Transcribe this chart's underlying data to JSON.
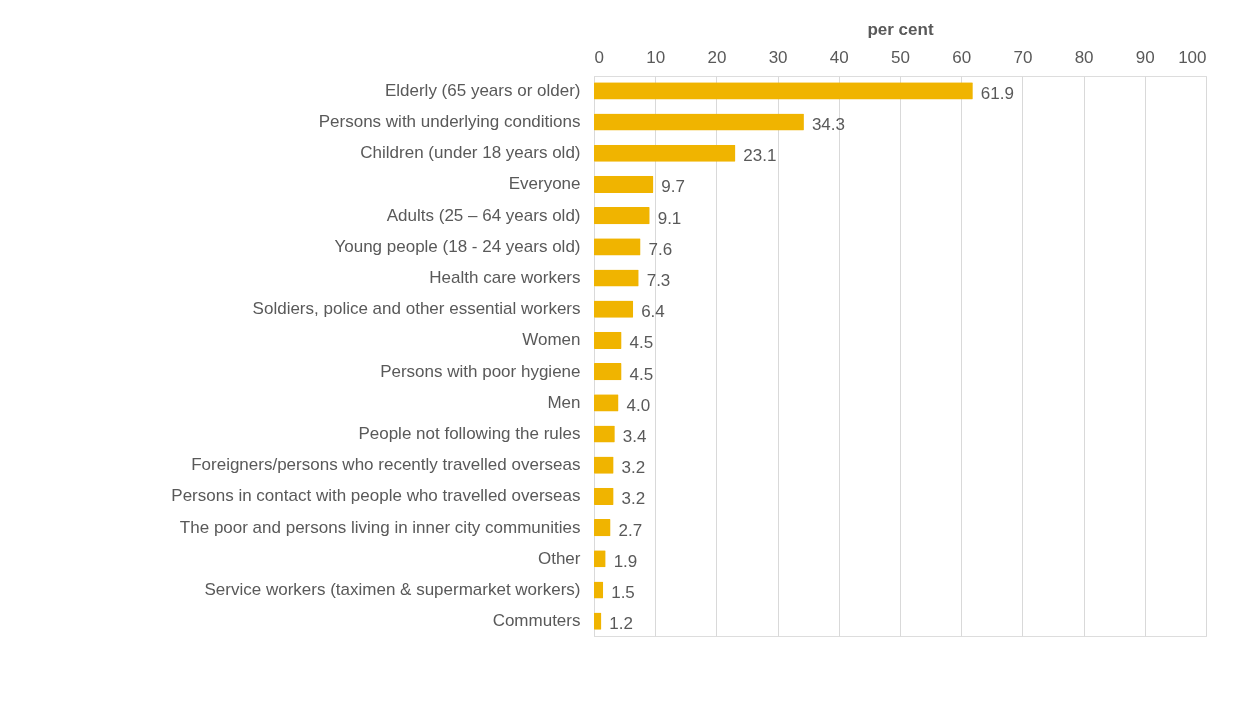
{
  "chart_data": {
    "type": "bar",
    "orientation": "horizontal",
    "xlabel": "per cent",
    "categories": [
      "Elderly (65 years or older)",
      "Persons with underlying conditions",
      "Children (under 18 years old)",
      "Everyone",
      "Adults (25 – 64 years old)",
      "Young people (18 - 24 years old)",
      "Health care workers",
      "Soldiers, police and other essential workers",
      "Women",
      "Persons with poor hygiene",
      "Men",
      "People not following the rules",
      "Foreigners/persons who recently travelled overseas",
      "Persons in contact with people who travelled overseas",
      "The poor and persons living in inner city communities",
      "Other",
      "Service workers (taximen & supermarket workers)",
      "Commuters"
    ],
    "values": [
      61.9,
      34.3,
      23.1,
      9.7,
      9.1,
      7.6,
      7.3,
      6.4,
      4.5,
      4.5,
      4.0,
      3.4,
      3.2,
      3.2,
      2.7,
      1.9,
      1.5,
      1.2
    ],
    "value_labels": [
      "61.9",
      "34.3",
      "23.1",
      "9.7",
      "9.1",
      "7.6",
      "7.3",
      "6.4",
      "4.5",
      "4.5",
      "4.0",
      "3.4",
      "3.2",
      "3.2",
      "2.7",
      "1.9",
      "1.5",
      "1.2"
    ],
    "color": "#f0b400",
    "xlim": [
      0,
      100
    ],
    "xticks": [
      0,
      10,
      20,
      30,
      40,
      50,
      60,
      70,
      80,
      90,
      100
    ],
    "grid": "x"
  }
}
